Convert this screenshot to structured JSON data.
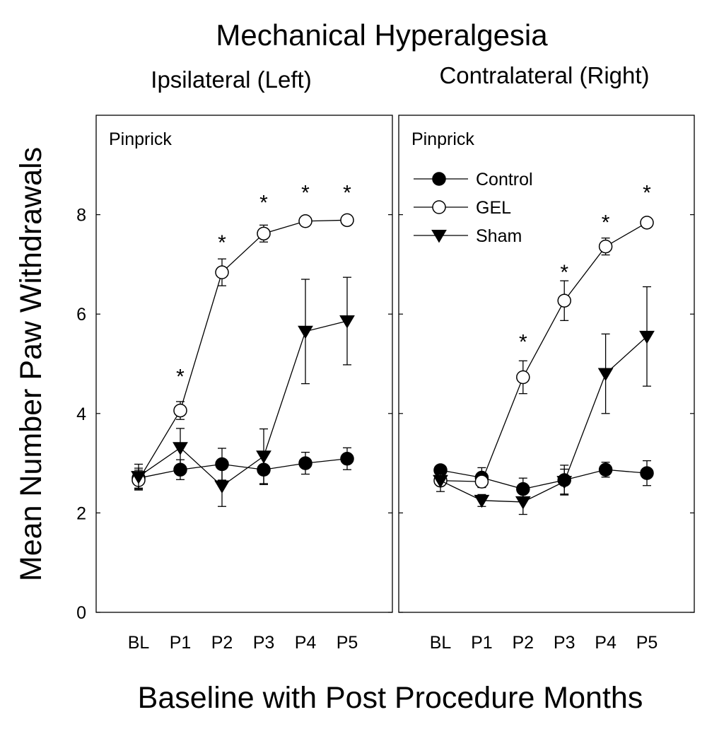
{
  "chart_data": {
    "type": "line",
    "title": "Mechanical Hyperalgesia",
    "xlabel": "Baseline with Post Procedure Months",
    "ylabel": "Mean Number Paw Withdrawals",
    "categories": [
      "BL",
      "P1",
      "P2",
      "P3",
      "P4",
      "P5"
    ],
    "ylim": [
      0,
      10
    ],
    "yticks": [
      0,
      2,
      4,
      6,
      8
    ],
    "legend_entries": [
      "Control",
      "GEL",
      "Sham"
    ],
    "panels": [
      {
        "title": "Ipsilateral (Left)",
        "label": "Pinprick",
        "show_legend": false,
        "show_ytick_labels": true,
        "series": [
          {
            "name": "Control",
            "marker": "filled-circle",
            "values": [
              2.7,
              2.87,
              2.98,
              2.87,
              3.0,
              3.09
            ],
            "errors": [
              0.2,
              0.2,
              0.32,
              0.3,
              0.22,
              0.22
            ]
          },
          {
            "name": "GEL",
            "marker": "open-circle",
            "values": [
              2.66,
              4.06,
              6.84,
              7.62,
              7.87,
              7.89
            ],
            "errors": [
              0.2,
              0.18,
              0.27,
              0.17,
              0.05,
              0.05
            ]
          },
          {
            "name": "Sham",
            "marker": "filled-triangle-down",
            "values": [
              2.73,
              3.31,
              2.54,
              3.14,
              5.65,
              5.86
            ],
            "errors": [
              0.25,
              0.39,
              0.41,
              0.55,
              1.05,
              0.88
            ]
          }
        ],
        "significance_marks": [
          {
            "category": "P1",
            "y": 4.8,
            "text": "*"
          },
          {
            "category": "P2",
            "y": 7.5,
            "text": "*"
          },
          {
            "category": "P3",
            "y": 8.3,
            "text": "*"
          },
          {
            "category": "P4",
            "y": 8.5,
            "text": "*"
          },
          {
            "category": "P5",
            "y": 8.5,
            "text": "*"
          }
        ]
      },
      {
        "title": "Contralateral (Right)",
        "label": "Pinprick",
        "show_legend": true,
        "show_ytick_labels": false,
        "series": [
          {
            "name": "Control",
            "marker": "filled-circle",
            "values": [
              2.86,
              2.71,
              2.48,
              2.66,
              2.87,
              2.8
            ],
            "errors": [
              0.1,
              0.2,
              0.22,
              0.3,
              0.15,
              0.25
            ]
          },
          {
            "name": "GEL",
            "marker": "open-circle",
            "values": [
              2.65,
              2.63,
              4.73,
              6.27,
              7.36,
              7.84
            ],
            "errors": [
              0.1,
              0.1,
              0.33,
              0.4,
              0.17,
              0.05
            ]
          },
          {
            "name": "Sham",
            "marker": "filled-triangle-down",
            "values": [
              2.65,
              2.25,
              2.22,
              2.63,
              4.8,
              5.55
            ],
            "errors": [
              0.22,
              0.12,
              0.25,
              0.25,
              0.8,
              1.0
            ]
          }
        ],
        "significance_marks": [
          {
            "category": "P2",
            "y": 5.5,
            "text": "*"
          },
          {
            "category": "P3",
            "y": 6.9,
            "text": "*"
          },
          {
            "category": "P4",
            "y": 7.9,
            "text": "*"
          },
          {
            "category": "P5",
            "y": 8.5,
            "text": "*"
          }
        ]
      }
    ]
  }
}
